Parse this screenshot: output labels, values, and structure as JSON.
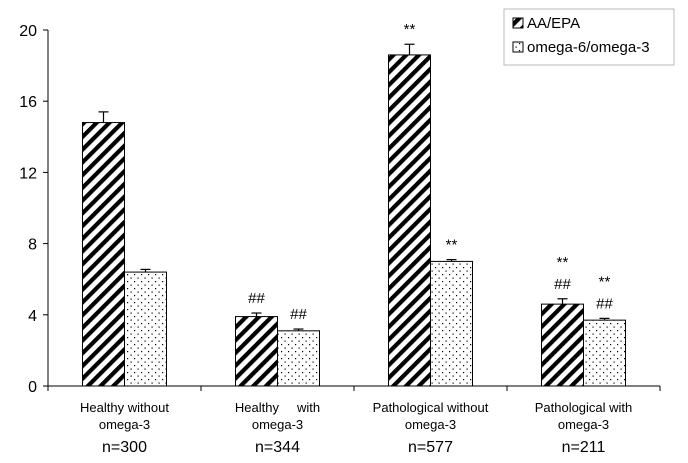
{
  "chart_data": {
    "type": "bar",
    "categories": [
      {
        "lines": [
          "Healthy without",
          "omega-3"
        ],
        "n": "n=300"
      },
      {
        "lines": [
          "Healthy     with",
          "omega-3"
        ],
        "n": "n=344"
      },
      {
        "lines": [
          "Pathological without",
          "omega-3"
        ],
        "n": "n=577"
      },
      {
        "lines": [
          "Pathological with",
          "omega-3"
        ],
        "n": "n=211"
      }
    ],
    "series": [
      {
        "name": "AA/EPA",
        "pattern": "diagonal-hatch",
        "values": [
          14.8,
          3.9,
          18.6,
          4.6
        ],
        "errors": [
          0.6,
          0.2,
          0.6,
          0.3
        ],
        "annotations": [
          [],
          [
            "##"
          ],
          [
            "**"
          ],
          [
            "**",
            "##"
          ]
        ]
      },
      {
        "name": "omega-6/omega-3",
        "pattern": "dots",
        "values": [
          6.4,
          3.1,
          7.0,
          3.7
        ],
        "errors": [
          0.15,
          0.1,
          0.1,
          0.1
        ],
        "annotations": [
          [],
          [
            "##"
          ],
          [
            "**"
          ],
          [
            "**",
            "##"
          ]
        ]
      }
    ],
    "y_ticks": [
      "0",
      "4",
      "8",
      "12",
      "16",
      "20"
    ],
    "ylim": [
      0,
      20
    ],
    "grid": false,
    "legend_position": "top-right"
  }
}
